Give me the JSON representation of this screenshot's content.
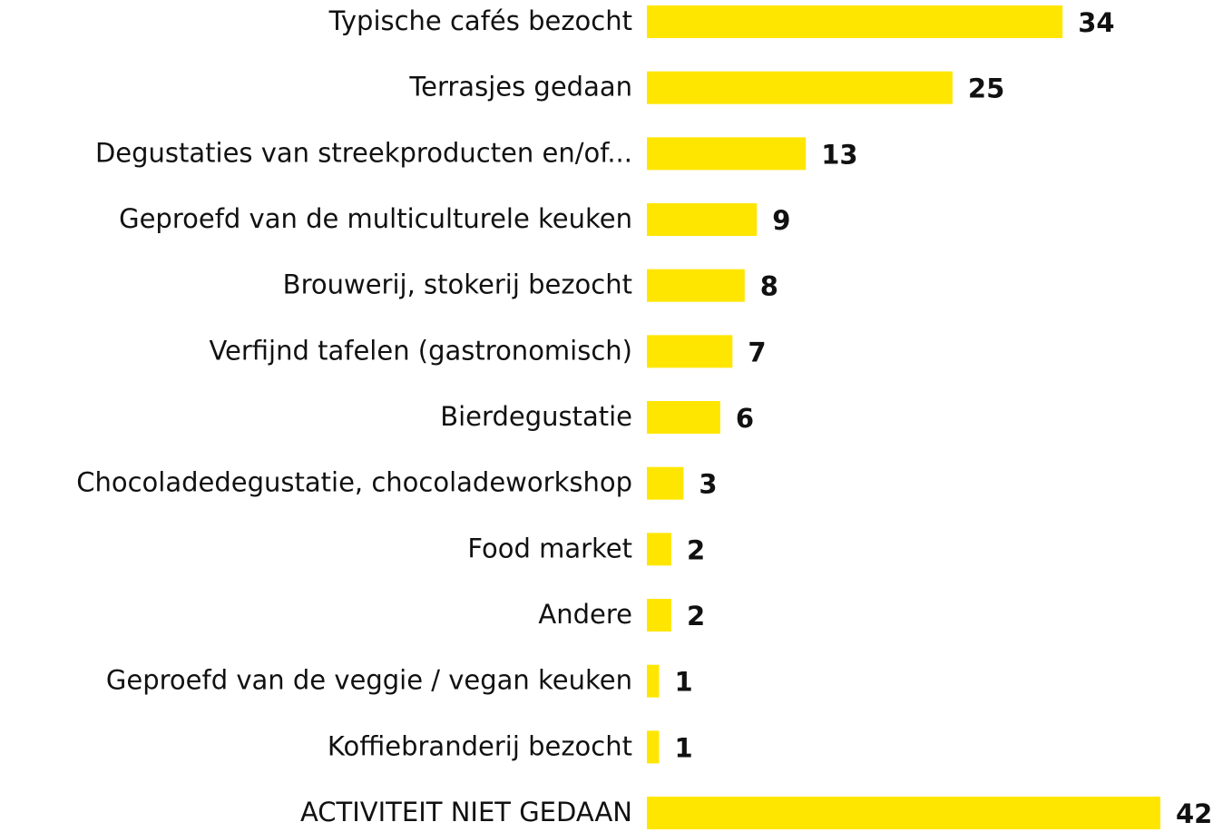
{
  "chart_data": {
    "type": "bar",
    "orientation": "horizontal",
    "categories": [
      "Typische cafés bezocht",
      "Terrasjes gedaan",
      "Degustaties van streekproducten en/of...",
      "Geproefd van de multiculturele keuken",
      "Brouwerij, stokerij bezocht",
      "Verfijnd tafelen (gastronomisch)",
      "Bierdegustatie",
      "Chocoladedegustatie, chocoladeworkshop",
      "Food market",
      "Andere",
      "Geproefd van de veggie / vegan keuken",
      "Koffiebranderij bezocht",
      "ACTIVITEIT NIET GEDAAN"
    ],
    "values": [
      34,
      25,
      13,
      9,
      8,
      7,
      6,
      3,
      2,
      2,
      1,
      1,
      42
    ],
    "color": "#ffe600"
  }
}
